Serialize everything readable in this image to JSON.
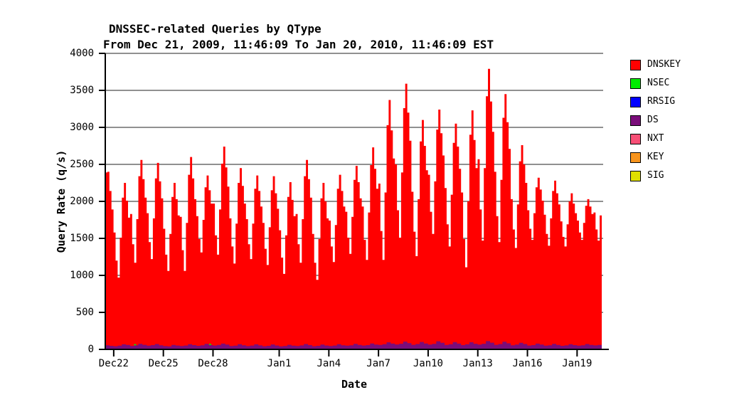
{
  "header": {
    "title": "DNSSEC-related Queries by QType",
    "subtitle": "From Dec 21, 2009, 11:46:09 To Jan 20, 2010, 11:46:09 EST"
  },
  "chart_data": {
    "type": "area",
    "stacked": true,
    "title": "DNSSEC-related Queries by QType",
    "subtitle": "From Dec 21, 2009, 11:46:09 To Jan 20, 2010, 11:46:09 EST",
    "xlabel": "Date",
    "ylabel": "Query Rate (q/s)",
    "ylim": [
      0,
      4000
    ],
    "yticks": [
      0,
      500,
      1000,
      1500,
      2000,
      2500,
      3000,
      3500,
      4000
    ],
    "x_range": {
      "start": "Dec 21, 2009 11:46:09 EST",
      "end": "Jan 20, 2010 11:46:09 EST",
      "days": 30
    },
    "xticks": [
      {
        "label": "Dec22",
        "t": 0.51
      },
      {
        "label": "Dec25",
        "t": 3.51
      },
      {
        "label": "Dec28",
        "t": 6.51
      },
      {
        "label": "Jan1",
        "t": 10.51
      },
      {
        "label": "Jan4",
        "t": 13.51
      },
      {
        "label": "Jan7",
        "t": 16.51
      },
      {
        "label": "Jan10",
        "t": 19.51
      },
      {
        "label": "Jan13",
        "t": 22.51
      },
      {
        "label": "Jan16",
        "t": 25.51
      },
      {
        "label": "Jan19",
        "t": 28.51
      }
    ],
    "grid": "horizontal-only",
    "legend_position": "right",
    "series": [
      {
        "name": "DNSKEY",
        "color": "#FF0000",
        "step_hours": 3,
        "values": [
          2390,
          2400,
          2140,
          1890,
          1580,
          1200,
          970,
          1510,
          2050,
          2250,
          2010,
          1780,
          1830,
          1420,
          1170,
          1760,
          2340,
          2560,
          2300,
          2050,
          1840,
          1450,
          1220,
          1770,
          2310,
          2520,
          2270,
          2040,
          1630,
          1280,
          1060,
          1560,
          2060,
          2250,
          2030,
          1810,
          1790,
          1340,
          1060,
          1710,
          2360,
          2600,
          2310,
          2030,
          1800,
          1490,
          1310,
          1750,
          2190,
          2350,
          2150,
          1970,
          1970,
          1540,
          1280,
          1890,
          2510,
          2740,
          2460,
          2200,
          1770,
          1390,
          1160,
          1700,
          2250,
          2450,
          2210,
          1970,
          1760,
          1420,
          1220,
          1700,
          2170,
          2350,
          2140,
          1930,
          1710,
          1360,
          1140,
          1650,
          2150,
          2340,
          2110,
          1900,
          1610,
          1240,
          1020,
          1540,
          2060,
          2260,
          2020,
          1800,
          1830,
          1420,
          1170,
          1760,
          2340,
          2560,
          2300,
          2050,
          1560,
          1170,
          940,
          1490,
          2040,
          2250,
          2000,
          1770,
          1740,
          1390,
          1180,
          1680,
          2170,
          2360,
          2140,
          1930,
          1860,
          1510,
          1290,
          1790,
          2290,
          2480,
          2260,
          2040,
          1930,
          1480,
          1210,
          1850,
          2490,
          2730,
          2440,
          2170,
          2240,
          1600,
          1210,
          2120,
          3030,
          3370,
          2960,
          2580,
          2500,
          1880,
          1510,
          2390,
          3260,
          3590,
          3200,
          2820,
          2130,
          1590,
          1260,
          2030,
          2810,
          3100,
          2750,
          2420,
          2360,
          1860,
          1560,
          2270,
          2970,
          3240,
          2920,
          2620,
          2180,
          1690,
          1390,
          2090,
          2790,
          3050,
          2740,
          2440,
          2120,
          1490,
          1110,
          2000,
          2900,
          3230,
          2830,
          2450,
          2570,
          1890,
          1470,
          2450,
          3420,
          3790,
          3350,
          2940,
          2400,
          1800,
          1450,
          2290,
          3130,
          3450,
          3070,
          2710,
          2030,
          1620,
          1370,
          1960,
          2540,
          2760,
          2500,
          2250,
          1880,
          1630,
          1480,
          1840,
          2190,
          2320,
          2160,
          2010,
          1820,
          1560,
          1400,
          1770,
          2140,
          2280,
          2110,
          1960,
          1730,
          1520,
          1390,
          1690,
          2000,
          2110,
          1970,
          1840,
          1740,
          1580,
          1480,
          1710,
          1940,
          2030,
          1930,
          1830,
          1850,
          1620,
          1470,
          1810,
          2270
        ]
      },
      {
        "name": "NSEC",
        "color": "#00EE00",
        "points": [
          [
            1.8,
            16
          ],
          [
            6.34,
            15
          ]
        ]
      },
      {
        "name": "RRSIG",
        "color": "#0000FF",
        "values": [
          0
        ]
      },
      {
        "name": "DS",
        "color": "#7A0D7A",
        "step_hours": 6,
        "values": [
          55,
          48,
          42,
          50,
          68,
          60,
          45,
          55,
          75,
          62,
          50,
          58,
          72,
          55,
          44,
          40,
          60,
          52,
          46,
          52,
          70,
          58,
          48,
          56,
          74,
          60,
          52,
          60,
          78,
          64,
          46,
          50,
          70,
          56,
          44,
          52,
          68,
          54,
          42,
          48,
          66,
          52,
          40,
          46,
          62,
          50,
          46,
          54,
          72,
          58,
          42,
          48,
          64,
          52,
          46,
          52,
          70,
          56,
          50,
          56,
          74,
          60,
          52,
          58,
          80,
          64,
          60,
          70,
          95,
          78,
          66,
          76,
          105,
          85,
          62,
          72,
          100,
          80,
          64,
          74,
          110,
          88,
          60,
          70,
          98,
          78,
          58,
          68,
          96,
          76,
          64,
          76,
          112,
          90,
          62,
          72,
          104,
          82,
          56,
          64,
          88,
          72,
          52,
          58,
          78,
          64,
          50,
          56,
          74,
          60,
          48,
          54,
          70,
          58,
          50,
          56,
          72,
          60,
          54,
          60,
          80
        ]
      },
      {
        "name": "NXT",
        "color": "#F84F76",
        "values": [
          0
        ]
      },
      {
        "name": "KEY",
        "color": "#F7941D",
        "values": [
          0
        ]
      },
      {
        "name": "SIG",
        "color": "#E0E000",
        "values": [
          0
        ]
      }
    ]
  }
}
